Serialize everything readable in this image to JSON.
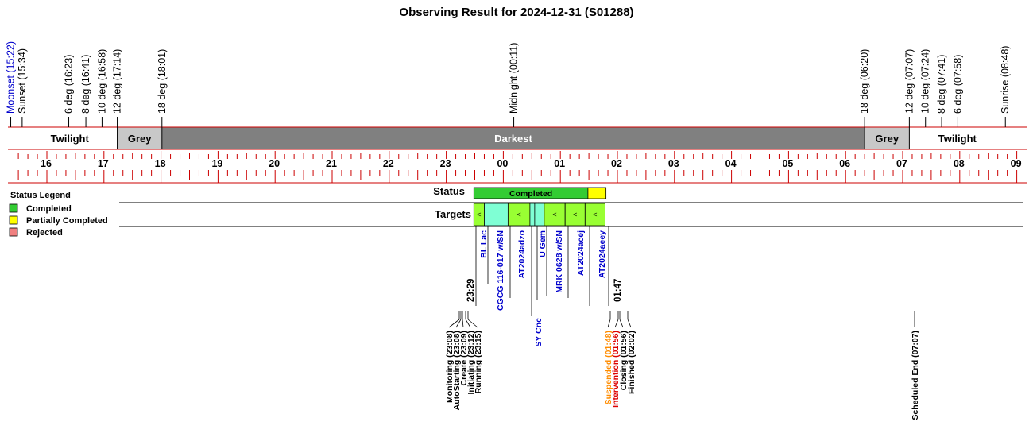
{
  "chart_data": {
    "type": "timeline",
    "title": "Observing Result for 2024-12-31 (S01288)",
    "x_range": [
      "15:22",
      "09:00"
    ],
    "hour_ticks": [
      "16",
      "17",
      "18",
      "19",
      "20",
      "21",
      "22",
      "23",
      "00",
      "01",
      "02",
      "03",
      "04",
      "05",
      "06",
      "07",
      "08",
      "09"
    ],
    "sky_events": [
      {
        "label": "Moonset (15:22)",
        "time": "15:22",
        "color": "#0000cc"
      },
      {
        "label": "Sunset (15:34)",
        "time": "15:34",
        "color": "#000000"
      },
      {
        "label": "6 deg (16:23)",
        "time": "16:23",
        "color": "#000000"
      },
      {
        "label": "8 deg (16:41)",
        "time": "16:41",
        "color": "#000000"
      },
      {
        "label": "10 deg (16:58)",
        "time": "16:58",
        "color": "#000000"
      },
      {
        "label": "12 deg (17:14)",
        "time": "17:14",
        "color": "#000000"
      },
      {
        "label": "18 deg (18:01)",
        "time": "18:01",
        "color": "#000000"
      },
      {
        "label": "Midnight (00:11)",
        "time": "00:11",
        "color": "#000000"
      },
      {
        "label": "18 deg (06:20)",
        "time": "06:20",
        "color": "#000000"
      },
      {
        "label": "12 deg (07:07)",
        "time": "07:07",
        "color": "#000000"
      },
      {
        "label": "10 deg (07:24)",
        "time": "07:24",
        "color": "#000000"
      },
      {
        "label": "8 deg (07:41)",
        "time": "07:41",
        "color": "#000000"
      },
      {
        "label": "6 deg (07:58)",
        "time": "07:58",
        "color": "#000000"
      },
      {
        "label": "Sunrise (08:48)",
        "time": "08:48",
        "color": "#000000"
      }
    ],
    "bands": [
      {
        "label": "Twilight",
        "start": "15:34",
        "end": "17:14",
        "color": "#ffffff"
      },
      {
        "label": "Grey",
        "start": "17:14",
        "end": "18:01",
        "color": "#c8c8c8"
      },
      {
        "label": "Darkest",
        "start": "18:01",
        "end": "06:20",
        "color": "#808080"
      },
      {
        "label": "Grey",
        "start": "06:20",
        "end": "07:07",
        "color": "#c8c8c8"
      },
      {
        "label": "Twilight",
        "start": "07:07",
        "end": "08:48",
        "color": "#ffffff"
      }
    ],
    "legend": {
      "title": "Status Legend",
      "items": [
        {
          "label": "Completed",
          "color": "#33cc33"
        },
        {
          "label": "Partially Completed",
          "color": "#ffff00"
        },
        {
          "label": "Rejected",
          "color": "#f08080"
        }
      ]
    },
    "status_row": {
      "label": "Status",
      "segments": [
        {
          "label": "Completed",
          "start": "23:29",
          "end": "01:29",
          "color": "#33cc33"
        },
        {
          "label": "",
          "start": "01:29",
          "end": "01:48",
          "color": "#ffff00"
        }
      ]
    },
    "targets_row": {
      "label": "Targets",
      "block_start": "23:29",
      "block_end": "01:47",
      "items": [
        {
          "name": "BL Lac",
          "start": "23:29",
          "end": "23:40",
          "color": "#99ff33",
          "mark": "<"
        },
        {
          "name": "CGCG 116-017 w/SN",
          "start": "23:40",
          "end": "00:05",
          "color": "#7fffd4",
          "mark": ""
        },
        {
          "name": "AT2024adzo",
          "start": "00:05",
          "end": "00:28",
          "color": "#99ff33",
          "mark": "<"
        },
        {
          "name": "SY Cnc",
          "start": "00:28",
          "end": "00:33",
          "color": "#7fffd4",
          "mark": ""
        },
        {
          "name": "U Gem",
          "start": "00:33",
          "end": "00:43",
          "color": "#7fffd4",
          "mark": ""
        },
        {
          "name": "MRK 0628 w/SN",
          "start": "00:43",
          "end": "01:05",
          "color": "#99ff33",
          "mark": "<"
        },
        {
          "name": "AT2024acej",
          "start": "01:05",
          "end": "01:26",
          "color": "#99ff33",
          "mark": "<"
        },
        {
          "name": "AT2024aeey",
          "start": "01:26",
          "end": "01:47",
          "color": "#99ff33",
          "mark": "<"
        }
      ]
    },
    "block_times": {
      "start": "23:29",
      "end": "01:47"
    },
    "status_events": [
      {
        "label": "Monitoring (23:08)",
        "time": "23:08",
        "color": "#000000"
      },
      {
        "label": "AutoStarting (23:08)",
        "time": "23:08",
        "color": "#000000"
      },
      {
        "label": "Create (23:09)",
        "time": "23:09",
        "color": "#000000"
      },
      {
        "label": "Initiating (23:12)",
        "time": "23:12",
        "color": "#000000"
      },
      {
        "label": "Running (23:15)",
        "time": "23:15",
        "color": "#000000"
      },
      {
        "label": "Suspended (01:48)",
        "time": "01:48",
        "color": "#ff8c00"
      },
      {
        "label": "Intervention (01:56)",
        "time": "01:56",
        "color": "#dd0000"
      },
      {
        "label": "Closing (01:56)",
        "time": "01:56",
        "color": "#000000"
      },
      {
        "label": "Finished (02:02)",
        "time": "02:02",
        "color": "#000000"
      },
      {
        "label": "Scheduled End (07:07)",
        "time": "07:07",
        "color": "#000000"
      }
    ]
  }
}
